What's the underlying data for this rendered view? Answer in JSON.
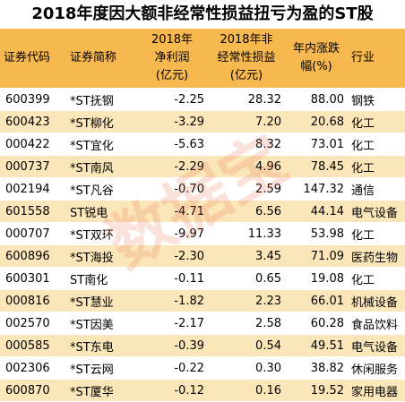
{
  "title": "2018年度因大额非经常性损益扭亏为盈的ST股",
  "watermark": "数据宝",
  "headers": [
    "证券代码",
    "证券简称",
    "2018年\n净利润\n(亿元)",
    "2018年非\n经常性损益\n(亿元)",
    "年内涨跌\n幅(%)",
    "行业"
  ],
  "rows": [
    [
      "600399",
      "*ST抚钢",
      "-2.25",
      "28.32",
      "88.00",
      "钢铁"
    ],
    [
      "600423",
      "*ST柳化",
      "-3.29",
      "7.20",
      "20.68",
      "化工"
    ],
    [
      "000422",
      "*ST宜化",
      "-5.63",
      "8.32",
      "73.01",
      "化工"
    ],
    [
      "000737",
      "*ST南风",
      "-2.29",
      "4.96",
      "78.45",
      "化工"
    ],
    [
      "002194",
      "*ST凡谷",
      "-0.70",
      "2.59",
      "147.32",
      "通信"
    ],
    [
      "601558",
      "ST锐电",
      "-4.71",
      "6.56",
      "44.14",
      "电气设备"
    ],
    [
      "000707",
      "*ST双环",
      "-9.97",
      "11.33",
      "53.98",
      "化工"
    ],
    [
      "600896",
      "*ST海投",
      "-2.30",
      "3.45",
      "71.09",
      "医药生物"
    ],
    [
      "600301",
      "ST南化",
      "-0.11",
      "0.65",
      "19.08",
      "化工"
    ],
    [
      "000816",
      "*ST慧业",
      "-1.82",
      "2.23",
      "66.01",
      "机械设备"
    ],
    [
      "002570",
      "*ST因美",
      "-2.17",
      "2.58",
      "60.28",
      "食品饮料"
    ],
    [
      "000585",
      "*ST东电",
      "-0.39",
      "0.54",
      "49.51",
      "电气设备"
    ],
    [
      "002306",
      "*ST云网",
      "-0.22",
      "0.30",
      "38.82",
      "休闲服务"
    ],
    [
      "600870",
      "*ST厦华",
      "-0.12",
      "0.16",
      "19.52",
      "家用电器"
    ]
  ],
  "colors": {
    "header_bg": "#f7b84f",
    "stripe_bg": "#fbe6b9",
    "row_bg": "#ffffff"
  }
}
